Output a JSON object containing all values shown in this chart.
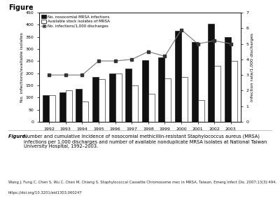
{
  "years": [
    1992,
    1993,
    1994,
    1995,
    1996,
    1997,
    1998,
    1999,
    2000,
    2001,
    2002,
    2003
  ],
  "nosocom_infections": [
    110,
    120,
    135,
    185,
    200,
    220,
    255,
    265,
    375,
    330,
    405,
    350
  ],
  "available_isolates": [
    110,
    130,
    85,
    175,
    200,
    150,
    115,
    180,
    185,
    90,
    230,
    250
  ],
  "infections_per_1000": [
    3.0,
    3.0,
    3.0,
    3.9,
    3.9,
    4.0,
    4.5,
    4.2,
    5.9,
    5.0,
    5.2,
    5.0
  ],
  "title": "Figure",
  "ylabel_left": "No. infections/available isolates",
  "ylabel_right": "Infection rate/1,000 discharges",
  "ylim_left": [
    0,
    450
  ],
  "ylim_right": [
    0,
    7
  ],
  "yticks_left": [
    0,
    50,
    100,
    150,
    200,
    250,
    300,
    350,
    400,
    450
  ],
  "yticks_right": [
    0,
    1,
    2,
    3,
    4,
    5,
    6,
    7
  ],
  "legend_labels": [
    "No. nosocomial MRSA infections",
    "Available stock isolates of MRSA",
    "No. infections/1,000 discharges"
  ],
  "bar_color_black": "#111111",
  "bar_color_white": "#ffffff",
  "line_color": "#777777",
  "bar_edgecolor": "#000000",
  "figure_caption_bold": "Figure. ",
  "figure_caption_text": "Number and cumulative incidence of nosocomial methicillin-resistant Staphylococcus aureus (MRSA) infections per 1,000 discharges and number of available nonduplicate MRSA isolates at National Taiwan University Hospital, 1992–2003.",
  "citation_line1": "Wang J, Fung C, Chen S, Wu C, Chen M, Chiang S. Staphylococcal Cassette Chromosome mec in MRSA, Taiwan. Emerg Infect Dis. 2007;13(3):494.",
  "citation_line2": "https://doi.org/10.3201/eid1303.060247"
}
